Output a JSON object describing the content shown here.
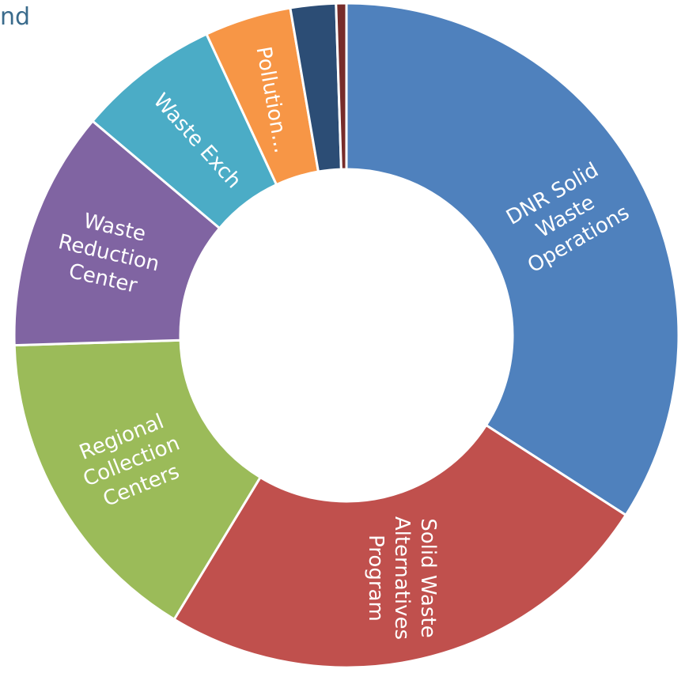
{
  "chart_data": {
    "type": "pie",
    "hole": true,
    "title_fragment": "nd",
    "border_color": "#ffffff",
    "slices": [
      {
        "label": "DNR Solid Waste Operations",
        "lines": [
          "DNR Solid",
          "Waste",
          "Operations"
        ],
        "value": 34.0,
        "color": "#4f81bd"
      },
      {
        "label": "Solid Waste Alternatives Program",
        "lines": [
          "Solid Waste",
          "Alternatives",
          "Program"
        ],
        "value": 24.5,
        "color": "#c0504d"
      },
      {
        "label": "Regional Collection Centers",
        "lines": [
          "Regional",
          "Collection",
          "Centers"
        ],
        "value": 15.8,
        "color": "#9bbb59"
      },
      {
        "label": "Waste Reduction Center",
        "lines": [
          "Waste",
          "Reduction",
          "Center"
        ],
        "value": 11.6,
        "color": "#8064a2"
      },
      {
        "label": "Waste Exch",
        "lines": [
          "Waste Exch"
        ],
        "value": 6.9,
        "color": "#4bacc6"
      },
      {
        "label": "Pollution...",
        "lines": [
          "Pollution..."
        ],
        "value": 4.2,
        "color": "#f79646"
      },
      {
        "label": "",
        "lines": [],
        "value": 2.2,
        "color": "#2c4d75"
      },
      {
        "label": "",
        "lines": [],
        "value": 0.5,
        "color": "#772c2a"
      }
    ]
  }
}
